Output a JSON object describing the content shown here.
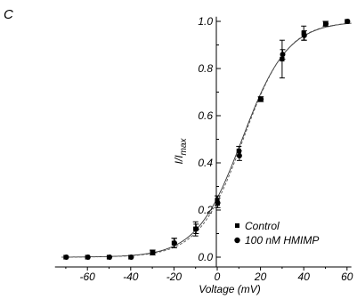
{
  "chart_data": {
    "type": "scatter",
    "panel_label": "C",
    "xlabel": "Voltage (mV)",
    "ylabel_main": "I/I",
    "ylabel_sub": "max",
    "xlim": [
      -75,
      62
    ],
    "ylim": [
      0,
      1.02
    ],
    "xticks": [
      -60,
      -40,
      -20,
      0,
      20,
      40,
      60
    ],
    "yticks": [
      0.0,
      0.2,
      0.4,
      0.6,
      0.8,
      1.0
    ],
    "xtick_labels": [
      "-60",
      "-40",
      "-20",
      "0",
      "20",
      "40",
      "60"
    ],
    "ytick_labels": [
      "0.0",
      "0.2",
      "0.4",
      "0.6",
      "0.8",
      "1.0"
    ],
    "grid": false,
    "legend_position": "lower-right",
    "series": [
      {
        "name": "Control",
        "marker": "square",
        "x": [
          -70,
          -60,
          -50,
          -40,
          -30,
          -20,
          -10,
          0,
          10,
          20,
          30,
          40,
          50,
          60
        ],
        "y": [
          0.0,
          0.0,
          0.0,
          0.0,
          0.02,
          0.06,
          0.12,
          0.24,
          0.45,
          0.67,
          0.84,
          0.95,
          0.99,
          1.0
        ],
        "err": [
          0,
          0,
          0,
          0,
          0.01,
          0.02,
          0.03,
          0.02,
          0.02,
          0.01,
          0.08,
          0.03,
          0.01,
          0.0
        ]
      },
      {
        "name": "100 nM HMIMP",
        "marker": "circle",
        "x": [
          -70,
          -60,
          -50,
          -40,
          -30,
          -20,
          -10,
          0,
          10,
          20,
          30,
          40,
          50,
          60
        ],
        "y": [
          0.0,
          0.0,
          0.0,
          0.0,
          0.02,
          0.06,
          0.12,
          0.23,
          0.43,
          0.67,
          0.86,
          0.94,
          0.99,
          1.0
        ],
        "err": [
          0,
          0,
          0,
          0,
          0.01,
          0.02,
          0.02,
          0.02,
          0.02,
          0.01,
          0.02,
          0.02,
          0.01,
          0.0
        ]
      }
    ]
  }
}
